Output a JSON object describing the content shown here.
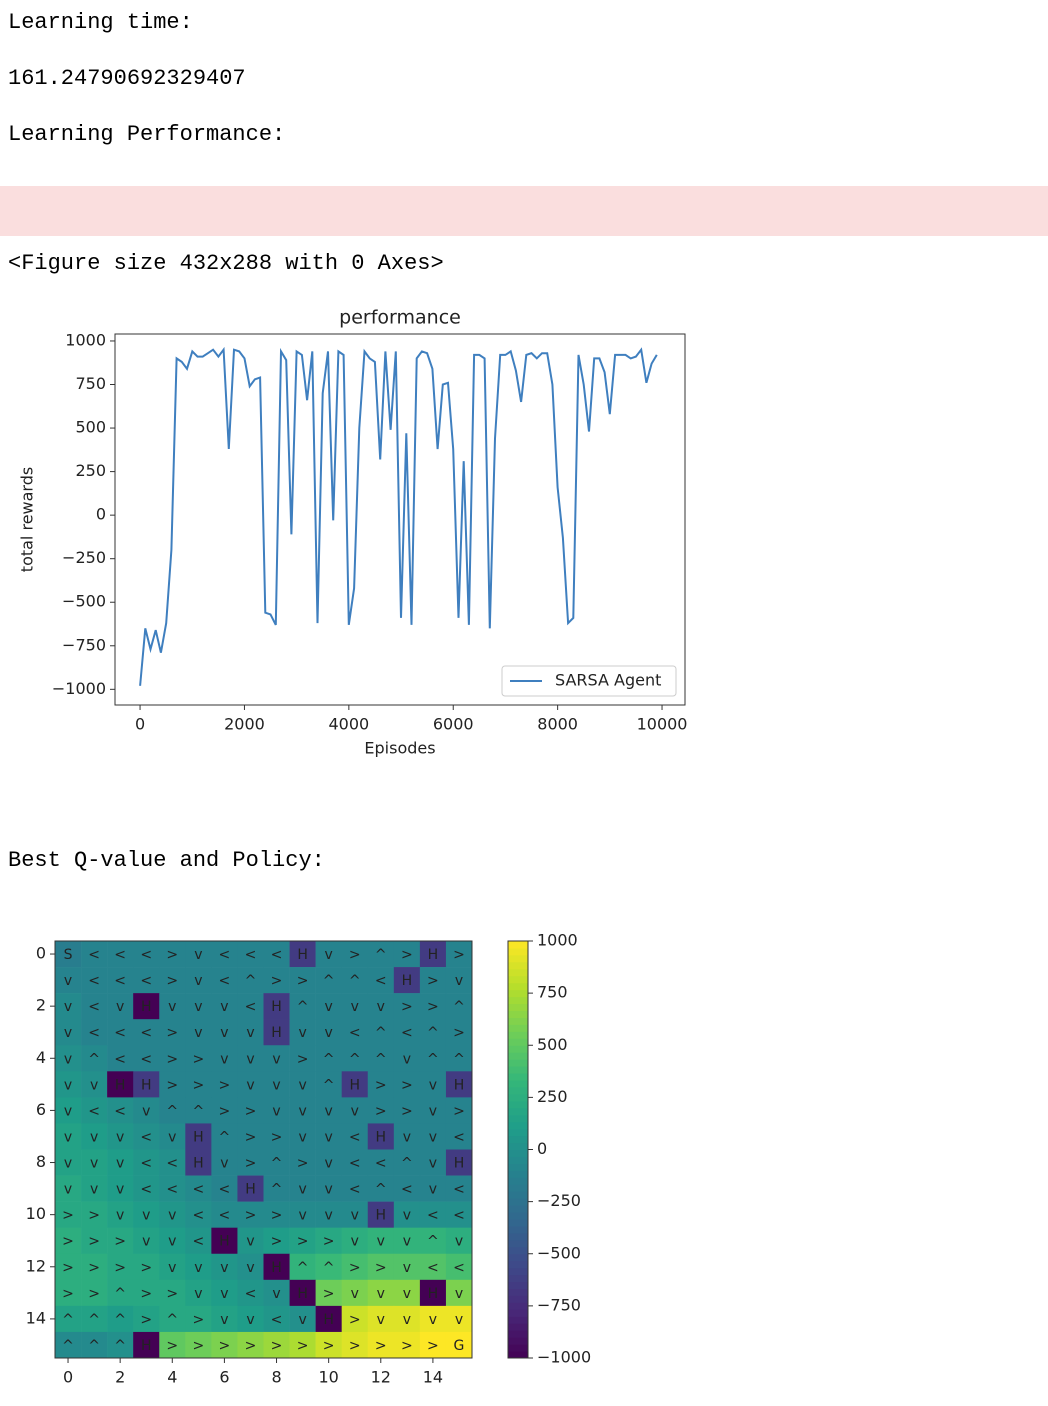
{
  "outputs": {
    "learning_time_label": "Learning time:",
    "learning_time": "161.24790692329407",
    "performance_label": "Learning Performance:",
    "figure_note": "<Figure size 432x288 with 0 Axes>",
    "policy_label": "Best Q-value and Policy:"
  },
  "chart_data": [
    {
      "type": "line",
      "title": "performance",
      "x_label": "Episodes",
      "y_label": "total rewards",
      "x": [
        0,
        100,
        200,
        300,
        400,
        500,
        600,
        700,
        800,
        900,
        1000,
        1100,
        1200,
        1300,
        1400,
        1500,
        1600,
        1700,
        1800,
        1900,
        2000,
        2100,
        2200,
        2300,
        2400,
        2500,
        2600,
        2700,
        2800,
        2900,
        3000,
        3100,
        3200,
        3300,
        3400,
        3500,
        3600,
        3700,
        3800,
        3900,
        4000,
        4100,
        4200,
        4300,
        4400,
        4500,
        4600,
        4700,
        4800,
        4900,
        5000,
        5100,
        5200,
        5300,
        5400,
        5500,
        5600,
        5700,
        5800,
        5900,
        6000,
        6100,
        6200,
        6300,
        6400,
        6500,
        6600,
        6700,
        6800,
        6900,
        7000,
        7100,
        7200,
        7300,
        7400,
        7500,
        7600,
        7700,
        7800,
        7900,
        8000,
        8100,
        8200,
        8300,
        8400,
        8500,
        8600,
        8700,
        8800,
        8900,
        9000,
        9100,
        9200,
        9300,
        9400,
        9500,
        9600,
        9700,
        9800,
        9900
      ],
      "series": [
        {
          "name": "SARSA Agent",
          "color": "#3f7fbf",
          "values": [
            -980,
            -650,
            -770,
            -660,
            -790,
            -620,
            -200,
            900,
            880,
            840,
            940,
            910,
            910,
            930,
            950,
            910,
            950,
            380,
            950,
            940,
            900,
            740,
            780,
            790,
            -560,
            -570,
            -630,
            940,
            890,
            -110,
            940,
            920,
            660,
            940,
            -620,
            700,
            940,
            -30,
            940,
            920,
            -630,
            -420,
            500,
            940,
            900,
            880,
            320,
            940,
            490,
            940,
            -590,
            470,
            -630,
            900,
            940,
            930,
            840,
            380,
            750,
            760,
            380,
            -590,
            310,
            -630,
            920,
            920,
            900,
            -650,
            440,
            920,
            920,
            940,
            830,
            650,
            920,
            930,
            900,
            930,
            930,
            750,
            160,
            -130,
            -620,
            -590,
            920,
            750,
            480,
            900,
            900,
            820,
            580,
            920,
            920,
            920,
            900,
            910,
            950,
            760,
            870,
            920
          ]
        }
      ],
      "xlim": [
        -480,
        10440
      ],
      "ylim": [
        -1090,
        1040
      ],
      "xticks": [
        0,
        2000,
        4000,
        6000,
        8000,
        10000
      ],
      "yticks": [
        {
          "value": -1000,
          "label": "−1000"
        },
        {
          "value": -750,
          "label": "−750"
        },
        {
          "value": -500,
          "label": "−500"
        },
        {
          "value": -250,
          "label": "−250"
        },
        0,
        250,
        500,
        750,
        1000
      ],
      "legend": "lower right",
      "grid": false
    },
    {
      "type": "heatmap",
      "colormap": "viridis",
      "clim": [
        -1000,
        1000
      ],
      "xlim": [
        -0.5,
        15.5
      ],
      "ylim": [
        15.5,
        -0.5
      ],
      "xticks": [
        0,
        2,
        4,
        6,
        8,
        10,
        12,
        14
      ],
      "yticks": [
        0,
        2,
        4,
        6,
        8,
        10,
        12,
        14
      ],
      "cticks": [
        {
          "value": -1000,
          "label": "−1000"
        },
        {
          "value": -750,
          "label": "−750"
        },
        {
          "value": -500,
          "label": "−500"
        },
        {
          "value": -250,
          "label": "−250"
        },
        0,
        250,
        500,
        750,
        1000
      ],
      "values": [
        [
          -150,
          -100,
          -100,
          -100,
          -100,
          -100,
          -100,
          -100,
          -100,
          -650,
          -100,
          -100,
          -100,
          -100,
          -650,
          -100
        ],
        [
          -100,
          -100,
          -100,
          -100,
          -100,
          -100,
          -100,
          -100,
          -100,
          -100,
          -100,
          -100,
          -100,
          -650,
          -100,
          -100
        ],
        [
          -50,
          -100,
          -100,
          -1000,
          -100,
          -100,
          -100,
          -100,
          -650,
          -100,
          -100,
          -100,
          -100,
          -100,
          -100,
          -100
        ],
        [
          -50,
          -100,
          -100,
          -100,
          -100,
          -100,
          -100,
          -100,
          -650,
          -100,
          -100,
          -100,
          -100,
          -100,
          -100,
          -100
        ],
        [
          0,
          -50,
          -100,
          -100,
          -100,
          -100,
          -100,
          -100,
          -100,
          -100,
          -100,
          -100,
          -100,
          -100,
          -100,
          -100
        ],
        [
          50,
          0,
          -1000,
          -650,
          -100,
          -100,
          -100,
          -100,
          -100,
          -100,
          -100,
          -650,
          -100,
          -100,
          -100,
          -650
        ],
        [
          100,
          50,
          0,
          -50,
          -100,
          -100,
          -100,
          -100,
          -100,
          -100,
          -100,
          -100,
          -100,
          -100,
          -100,
          -100
        ],
        [
          150,
          100,
          50,
          0,
          -50,
          -650,
          -100,
          -100,
          -100,
          -100,
          -100,
          -100,
          -650,
          -100,
          -100,
          -100
        ],
        [
          150,
          150,
          100,
          50,
          0,
          -650,
          -100,
          -100,
          -100,
          -100,
          -100,
          -100,
          -100,
          -100,
          -100,
          -650
        ],
        [
          200,
          150,
          100,
          50,
          0,
          -50,
          -100,
          -650,
          -100,
          -100,
          -100,
          -100,
          -100,
          -100,
          -100,
          -100
        ],
        [
          200,
          200,
          150,
          100,
          50,
          0,
          -50,
          -50,
          -50,
          -50,
          -50,
          -50,
          -650,
          0,
          0,
          0
        ],
        [
          250,
          200,
          200,
          150,
          100,
          50,
          -1000,
          50,
          100,
          150,
          200,
          250,
          300,
          300,
          300,
          250
        ],
        [
          250,
          250,
          200,
          200,
          150,
          100,
          50,
          0,
          -1000,
          300,
          350,
          400,
          450,
          450,
          450,
          400
        ],
        [
          250,
          250,
          200,
          200,
          200,
          150,
          100,
          50,
          0,
          -1000,
          550,
          600,
          650,
          650,
          -1000,
          600
        ],
        [
          150,
          150,
          100,
          150,
          200,
          200,
          150,
          100,
          50,
          0,
          -1000,
          850,
          900,
          900,
          950,
          950
        ],
        [
          -50,
          -50,
          0,
          -1000,
          500,
          550,
          600,
          650,
          700,
          750,
          850,
          900,
          950,
          950,
          1000,
          1000
        ]
      ],
      "annotations": [
        [
          "S",
          "<",
          "<",
          "<",
          ">",
          "v",
          "<",
          "<",
          "<",
          "H",
          "v",
          ">",
          "^",
          ">",
          "H",
          ">"
        ],
        [
          "v",
          "<",
          "<",
          "<",
          ">",
          "v",
          "<",
          "^",
          ">",
          ">",
          "^",
          "^",
          "<",
          "H",
          ">",
          "v"
        ],
        [
          "v",
          "<",
          "v",
          "H",
          "v",
          "v",
          "v",
          "<",
          "H",
          "^",
          "v",
          "v",
          "v",
          ">",
          ">",
          "^"
        ],
        [
          "v",
          "<",
          "<",
          "<",
          ">",
          "v",
          "v",
          "v",
          "H",
          "v",
          "v",
          "<",
          "^",
          "<",
          "^",
          ">"
        ],
        [
          "v",
          "^",
          "<",
          "<",
          ">",
          ">",
          "v",
          "v",
          "v",
          ">",
          "^",
          "^",
          "^",
          "v",
          "^",
          "^"
        ],
        [
          "v",
          "v",
          "H",
          "H",
          ">",
          ">",
          ">",
          "v",
          "v",
          "v",
          "^",
          "H",
          ">",
          ">",
          "v",
          "H"
        ],
        [
          "v",
          "<",
          "<",
          "v",
          "^",
          "^",
          ">",
          ">",
          "v",
          "v",
          "v",
          "v",
          ">",
          ">",
          "v",
          ">"
        ],
        [
          "v",
          "v",
          "v",
          "<",
          "v",
          "H",
          "^",
          ">",
          ">",
          "v",
          "v",
          "<",
          "H",
          "v",
          "v",
          "<"
        ],
        [
          "v",
          "v",
          "v",
          "<",
          "<",
          "H",
          "v",
          ">",
          "^",
          ">",
          "v",
          "<",
          "<",
          "^",
          "v",
          "H"
        ],
        [
          "v",
          "v",
          "v",
          "<",
          "<",
          "<",
          "<",
          "H",
          "^",
          "v",
          "v",
          "<",
          "^",
          "<",
          "v",
          "<"
        ],
        [
          ">",
          ">",
          "v",
          "v",
          "v",
          "<",
          "<",
          ">",
          ">",
          "v",
          "v",
          "v",
          "H",
          "v",
          "<",
          "<"
        ],
        [
          ">",
          ">",
          ">",
          "v",
          "v",
          "<",
          "H",
          "v",
          ">",
          ">",
          ">",
          "v",
          "v",
          "v",
          "^",
          "v"
        ],
        [
          ">",
          ">",
          ">",
          ">",
          "v",
          "v",
          "v",
          "v",
          "H",
          "^",
          "^",
          ">",
          ">",
          "v",
          "<",
          "<"
        ],
        [
          ">",
          ">",
          "^",
          ">",
          ">",
          "v",
          "v",
          "<",
          "v",
          "H",
          ">",
          "v",
          "v",
          "v",
          "H",
          "v"
        ],
        [
          "^",
          "^",
          "^",
          ">",
          "^",
          ">",
          "v",
          "v",
          "<",
          "v",
          "H",
          ">",
          "v",
          "v",
          "v",
          "v"
        ],
        [
          "^",
          "^",
          "^",
          "H",
          ">",
          ">",
          ">",
          ">",
          ">",
          ">",
          ">",
          ">",
          ">",
          ">",
          ">",
          "G"
        ]
      ]
    }
  ]
}
